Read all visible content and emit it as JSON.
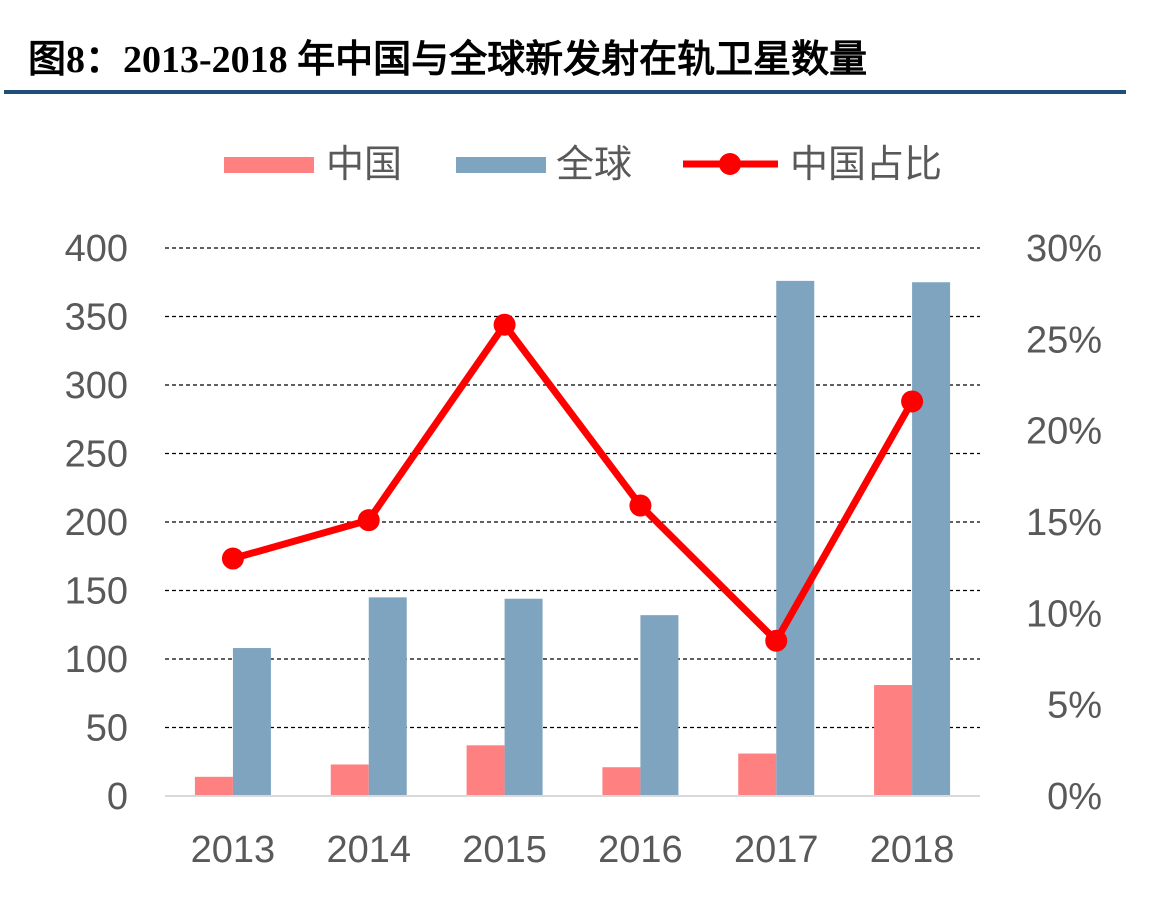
{
  "figure": {
    "title": "图8：2013-2018 年中国与全球新发射在轨卫星数量"
  },
  "colors": {
    "china": "#ff8080",
    "global": "#7fa4bf",
    "share": "#ff0000",
    "title_rule": "#1f4e79",
    "axis_text": "#595959"
  },
  "chart_data": {
    "type": "bar",
    "categories": [
      "2013",
      "2014",
      "2015",
      "2016",
      "2017",
      "2018"
    ],
    "series": [
      {
        "name": "中国",
        "type": "bar",
        "axis": "left",
        "values": [
          14,
          23,
          37,
          21,
          31,
          81
        ]
      },
      {
        "name": "全球",
        "type": "bar",
        "axis": "left",
        "values": [
          108,
          145,
          144,
          132,
          376,
          375
        ]
      },
      {
        "name": "中国占比",
        "type": "line",
        "axis": "right",
        "values": [
          13.0,
          15.1,
          25.8,
          15.9,
          8.5,
          21.6
        ]
      }
    ],
    "ylim_left": [
      0,
      400
    ],
    "left_ticks": [
      "0",
      "50",
      "100",
      "150",
      "200",
      "250",
      "300",
      "350",
      "400"
    ],
    "ylim_right": [
      0,
      30
    ],
    "right_ticks": [
      "0%",
      "5%",
      "10%",
      "15%",
      "20%",
      "25%",
      "30%"
    ],
    "grid": true,
    "legend_position": "top"
  }
}
